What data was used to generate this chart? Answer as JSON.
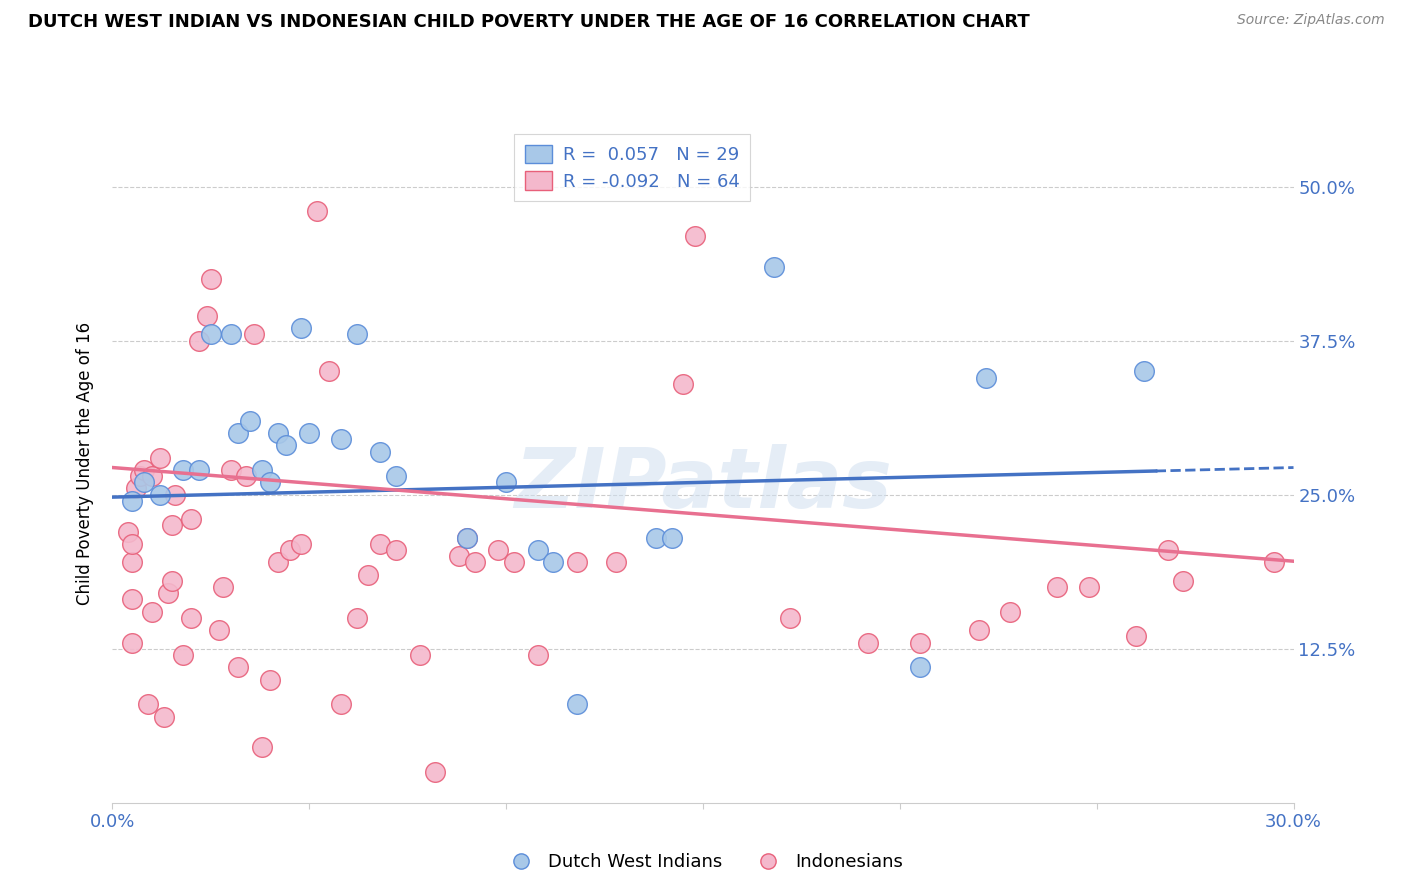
{
  "title": "DUTCH WEST INDIAN VS INDONESIAN CHILD POVERTY UNDER THE AGE OF 16 CORRELATION CHART",
  "source": "Source: ZipAtlas.com",
  "ylabel": "Child Poverty Under the Age of 16",
  "yticks_labels": [
    "50.0%",
    "37.5%",
    "25.0%",
    "12.5%"
  ],
  "ytick_vals": [
    0.5,
    0.375,
    0.25,
    0.125
  ],
  "xlim": [
    0.0,
    0.3
  ],
  "ylim": [
    0.0,
    0.55
  ],
  "color_blue": "#A8C8E8",
  "color_pink": "#F4B8CC",
  "color_blue_edge": "#5B8DD9",
  "color_pink_edge": "#E8607A",
  "color_blue_line": "#4472C4",
  "color_pink_line": "#E87090",
  "watermark": "ZIPatlas",
  "blue_points": [
    [
      0.005,
      0.245
    ],
    [
      0.008,
      0.26
    ],
    [
      0.012,
      0.25
    ],
    [
      0.018,
      0.27
    ],
    [
      0.022,
      0.27
    ],
    [
      0.025,
      0.38
    ],
    [
      0.03,
      0.38
    ],
    [
      0.032,
      0.3
    ],
    [
      0.035,
      0.31
    ],
    [
      0.038,
      0.27
    ],
    [
      0.04,
      0.26
    ],
    [
      0.042,
      0.3
    ],
    [
      0.044,
      0.29
    ],
    [
      0.048,
      0.385
    ],
    [
      0.05,
      0.3
    ],
    [
      0.058,
      0.295
    ],
    [
      0.062,
      0.38
    ],
    [
      0.068,
      0.285
    ],
    [
      0.072,
      0.265
    ],
    [
      0.09,
      0.215
    ],
    [
      0.1,
      0.26
    ],
    [
      0.108,
      0.205
    ],
    [
      0.112,
      0.195
    ],
    [
      0.118,
      0.08
    ],
    [
      0.138,
      0.215
    ],
    [
      0.142,
      0.215
    ],
    [
      0.168,
      0.435
    ],
    [
      0.205,
      0.11
    ],
    [
      0.222,
      0.345
    ],
    [
      0.262,
      0.35
    ]
  ],
  "pink_points": [
    [
      0.004,
      0.22
    ],
    [
      0.005,
      0.165
    ],
    [
      0.005,
      0.13
    ],
    [
      0.005,
      0.195
    ],
    [
      0.005,
      0.21
    ],
    [
      0.006,
      0.255
    ],
    [
      0.007,
      0.265
    ],
    [
      0.008,
      0.27
    ],
    [
      0.009,
      0.08
    ],
    [
      0.01,
      0.155
    ],
    [
      0.01,
      0.265
    ],
    [
      0.012,
      0.28
    ],
    [
      0.013,
      0.07
    ],
    [
      0.014,
      0.17
    ],
    [
      0.015,
      0.18
    ],
    [
      0.015,
      0.225
    ],
    [
      0.016,
      0.25
    ],
    [
      0.018,
      0.12
    ],
    [
      0.02,
      0.15
    ],
    [
      0.02,
      0.23
    ],
    [
      0.022,
      0.375
    ],
    [
      0.024,
      0.395
    ],
    [
      0.025,
      0.425
    ],
    [
      0.027,
      0.14
    ],
    [
      0.028,
      0.175
    ],
    [
      0.03,
      0.27
    ],
    [
      0.032,
      0.11
    ],
    [
      0.034,
      0.265
    ],
    [
      0.036,
      0.38
    ],
    [
      0.038,
      0.045
    ],
    [
      0.04,
      0.1
    ],
    [
      0.042,
      0.195
    ],
    [
      0.045,
      0.205
    ],
    [
      0.048,
      0.21
    ],
    [
      0.052,
      0.48
    ],
    [
      0.055,
      0.35
    ],
    [
      0.058,
      0.08
    ],
    [
      0.062,
      0.15
    ],
    [
      0.065,
      0.185
    ],
    [
      0.068,
      0.21
    ],
    [
      0.072,
      0.205
    ],
    [
      0.078,
      0.12
    ],
    [
      0.082,
      0.025
    ],
    [
      0.088,
      0.2
    ],
    [
      0.09,
      0.215
    ],
    [
      0.092,
      0.195
    ],
    [
      0.098,
      0.205
    ],
    [
      0.102,
      0.195
    ],
    [
      0.108,
      0.12
    ],
    [
      0.118,
      0.195
    ],
    [
      0.128,
      0.195
    ],
    [
      0.145,
      0.34
    ],
    [
      0.148,
      0.46
    ],
    [
      0.172,
      0.15
    ],
    [
      0.192,
      0.13
    ],
    [
      0.205,
      0.13
    ],
    [
      0.22,
      0.14
    ],
    [
      0.228,
      0.155
    ],
    [
      0.24,
      0.175
    ],
    [
      0.248,
      0.175
    ],
    [
      0.26,
      0.135
    ],
    [
      0.268,
      0.205
    ],
    [
      0.272,
      0.18
    ],
    [
      0.295,
      0.195
    ]
  ],
  "blue_line_x": [
    0.0,
    0.3
  ],
  "blue_line_y": [
    0.248,
    0.272
  ],
  "pink_line_x": [
    0.0,
    0.3
  ],
  "pink_line_y": [
    0.272,
    0.196
  ]
}
